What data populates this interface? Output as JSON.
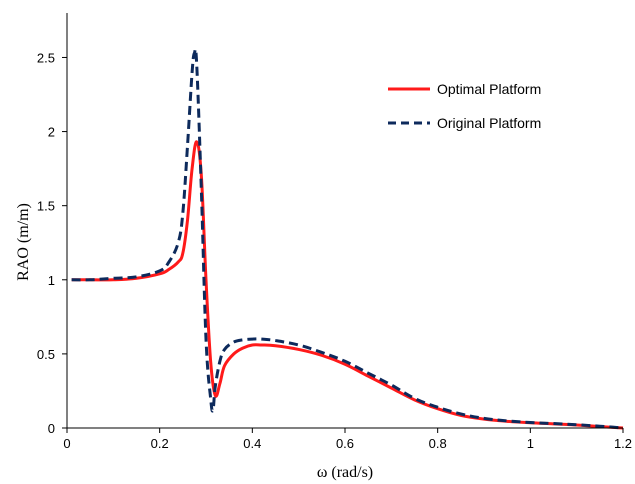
{
  "chart_data": {
    "type": "line",
    "title": "",
    "xlabel": "ω (rad/s)",
    "ylabel": "RAO (m/m)",
    "xlim": [
      0,
      1.2
    ],
    "ylim": [
      0,
      2.8
    ],
    "x_ticks": [
      0,
      0.2,
      0.4,
      0.6,
      0.8,
      1,
      1.2
    ],
    "x_tick_labels": [
      "0",
      "0.2",
      "0.4",
      "0.6",
      "0.8",
      "1",
      "1.2"
    ],
    "y_ticks": [
      0,
      0.5,
      1,
      1.5,
      2,
      2.5
    ],
    "y_tick_labels": [
      "0",
      "0.5",
      "1",
      "1.5",
      "2",
      "2.5"
    ],
    "grid": false,
    "legend_position": "top-right",
    "series": [
      {
        "name": "Optimal Platform",
        "color": "#ff1a1a",
        "line_style": "solid",
        "x": [
          0.01,
          0.05,
          0.1,
          0.15,
          0.2,
          0.22,
          0.24,
          0.25,
          0.26,
          0.27,
          0.28,
          0.29,
          0.3,
          0.31,
          0.32,
          0.33,
          0.34,
          0.36,
          0.38,
          0.4,
          0.42,
          0.45,
          0.5,
          0.55,
          0.6,
          0.65,
          0.7,
          0.75,
          0.8,
          0.85,
          0.9,
          0.95,
          1.0,
          1.05,
          1.1,
          1.15,
          1.2
        ],
        "y": [
          1.0,
          1.0,
          1.0,
          1.01,
          1.04,
          1.07,
          1.12,
          1.18,
          1.4,
          1.75,
          1.93,
          1.7,
          1.0,
          0.45,
          0.22,
          0.3,
          0.42,
          0.5,
          0.54,
          0.56,
          0.56,
          0.555,
          0.53,
          0.49,
          0.43,
          0.35,
          0.27,
          0.19,
          0.13,
          0.085,
          0.06,
          0.045,
          0.035,
          0.028,
          0.02,
          0.01,
          0.0
        ]
      },
      {
        "name": "Original Platform",
        "color": "#0d2a5c",
        "line_style": "dashed",
        "x": [
          0.01,
          0.05,
          0.1,
          0.15,
          0.2,
          0.22,
          0.24,
          0.25,
          0.26,
          0.27,
          0.275,
          0.28,
          0.29,
          0.3,
          0.31,
          0.315,
          0.32,
          0.33,
          0.34,
          0.36,
          0.38,
          0.4,
          0.42,
          0.45,
          0.5,
          0.55,
          0.6,
          0.65,
          0.7,
          0.75,
          0.8,
          0.85,
          0.9,
          0.95,
          1.0,
          1.05,
          1.1,
          1.15,
          1.2
        ],
        "y": [
          1.0,
          1.0,
          1.01,
          1.02,
          1.06,
          1.12,
          1.25,
          1.45,
          1.9,
          2.4,
          2.53,
          2.45,
          1.6,
          0.6,
          0.2,
          0.12,
          0.28,
          0.45,
          0.53,
          0.58,
          0.595,
          0.6,
          0.6,
          0.59,
          0.56,
          0.51,
          0.45,
          0.37,
          0.29,
          0.2,
          0.14,
          0.095,
          0.065,
          0.048,
          0.037,
          0.03,
          0.022,
          0.012,
          0.0
        ]
      }
    ]
  }
}
